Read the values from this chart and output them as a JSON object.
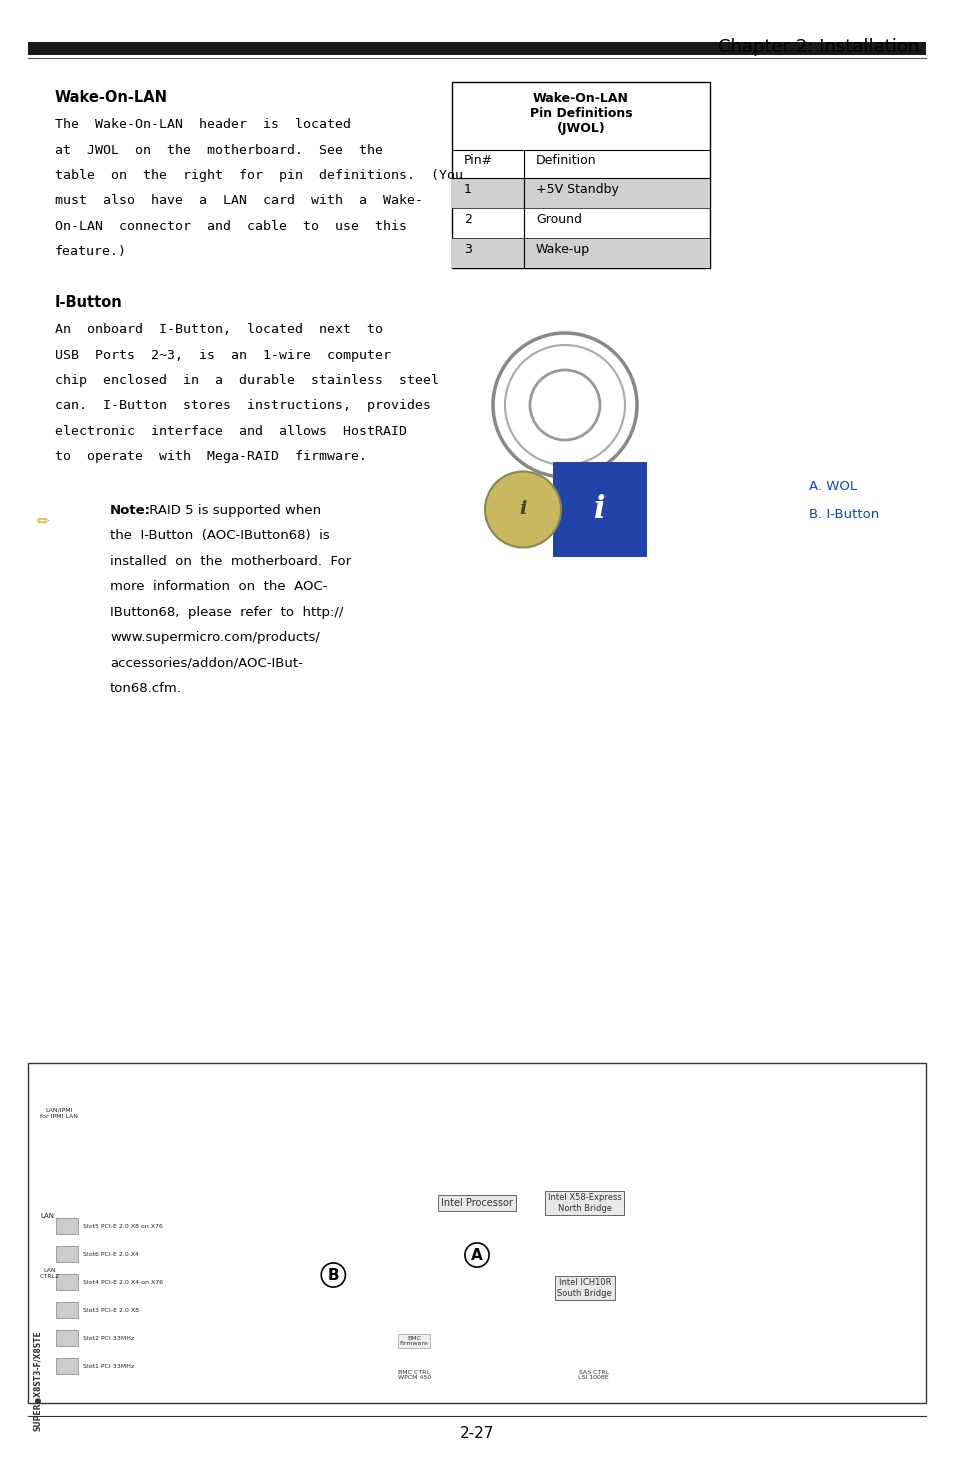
{
  "page_width": 9.54,
  "page_height": 14.58,
  "bg_color": "#ffffff",
  "header_text": "Chapter 2: Installation",
  "header_fontsize": 13,
  "page_number": "2-27",
  "section1_title": "Wake-On-LAN",
  "section1_body": [
    "The  Wake-On-LAN  header  is  located",
    "at  JWOL  on  the  motherboard.  See  the",
    "table  on  the  right  for  pin  definitions.  (You",
    "must  also  have  a  LAN  card  with  a  Wake-",
    "On-LAN  connector  and  cable  to  use  this",
    "feature.)"
  ],
  "table_title": "Wake-On-LAN\nPin Definitions\n(JWOL)",
  "table_headers": [
    "Pin#",
    "Definition"
  ],
  "table_rows": [
    [
      "1",
      "+5V Standby"
    ],
    [
      "2",
      "Ground"
    ],
    [
      "3",
      "Wake-up"
    ]
  ],
  "table_shaded_rows": [
    0,
    2
  ],
  "table_shade_color": "#d0d0d0",
  "section2_title": "I-Button",
  "section2_body": [
    "An  onboard  I-Button,  located  next  to",
    "USB  Ports  2~3,  is  an  1-wire  computer",
    "chip  enclosed  in  a  durable  stainless  steel",
    "can.  I-Button  stores  instructions,  provides",
    "electronic  interface  and  allows  HostRAID",
    "to  operate  with  Mega-RAID  firmware."
  ],
  "note_title": "Note:",
  "note_body": [
    " RAID 5 is supported when",
    "the  I-Button  (AOC-IButton68)  is",
    "installed  on  the  motherboard.  For",
    "more  information  on  the  AOC-",
    "IButton68,  please  refer  to  http://",
    "www.supermicro.com/products/",
    "accessories/addon/AOC-IBut-",
    "ton68.cfm."
  ],
  "label_a": "A. WOL",
  "label_b": "B. I-Button",
  "line_color": "#000000",
  "text_color": "#000000",
  "body_fontsize": 9.5,
  "title_fontsize": 10.5,
  "table_fontsize": 9
}
